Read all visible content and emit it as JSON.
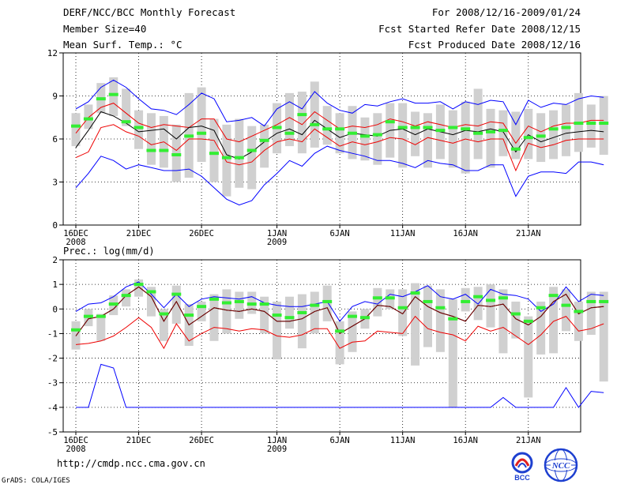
{
  "header": {
    "left": [
      "DERF/NCC/BCC Monthly Forecast",
      "Member Size=40",
      "Mean Surf. Temp.: °C"
    ],
    "right": [
      "For 2008/12/16-2009/01/24",
      "Fcst Started Refer Date 2008/12/15",
      "Fcst Produced Date 2008/12/16"
    ]
  },
  "footer": {
    "url": "http://cmdp.ncc.cma.gov.cn",
    "credit": "GrADS: COLA/IGES"
  },
  "logos": {
    "bcc": "BCC",
    "ncc": "NCC"
  },
  "colors": {
    "max": "#0000ff",
    "p10": "#ee0000",
    "mean": "#000000",
    "box": "#d0d0d0",
    "median": "#33ee33",
    "grid": "#000000"
  },
  "chart_data": [
    {
      "type": "line",
      "title": "Mean Surf. Temp.: °C",
      "ylim": [
        0,
        12
      ],
      "yticks": [
        "0",
        "3",
        "6",
        "9",
        "12"
      ],
      "xticks": [
        {
          "day": 1,
          "label": "16DEC",
          "sub": "2008"
        },
        {
          "day": 6,
          "label": "21DEC",
          "sub": ""
        },
        {
          "day": 11,
          "label": "26DEC",
          "sub": ""
        },
        {
          "day": 17,
          "label": "1JAN",
          "sub": "2009"
        },
        {
          "day": 22,
          "label": "6JAN",
          "sub": ""
        },
        {
          "day": 27,
          "label": "11JAN",
          "sub": ""
        },
        {
          "day": 32,
          "label": "16JAN",
          "sub": ""
        },
        {
          "day": 37,
          "label": "21JAN",
          "sub": ""
        }
      ],
      "series": [
        {
          "name": "max",
          "values": [
            2.6,
            3.6,
            4.8,
            4.5,
            3.9,
            4.2,
            4.0,
            3.8,
            3.8,
            3.9,
            3.4,
            2.6,
            1.8,
            1.4,
            1.7,
            2.8,
            3.6,
            4.5,
            4.1,
            5.0,
            5.5,
            5.2,
            5.0,
            4.8,
            4.5,
            4.5,
            4.3,
            4.0,
            4.5,
            4.3,
            4.2,
            3.8,
            3.8,
            4.2,
            4.2,
            2.0,
            3.4,
            3.7,
            3.7,
            3.6,
            4.4,
            4.4,
            4.2
          ]
        },
        {
          "name": "max_top",
          "values": [
            8.1,
            8.6,
            9.6,
            10.1,
            9.6,
            8.8,
            8.1,
            8.0,
            7.7,
            8.4,
            9.2,
            8.8,
            7.2,
            7.3,
            7.5,
            6.9,
            8.1,
            8.6,
            8.1,
            9.3,
            8.5,
            8.0,
            7.8,
            8.4,
            8.3,
            8.6,
            8.8,
            8.5,
            8.5,
            8.6,
            8.1,
            8.6,
            8.4,
            8.7,
            8.6,
            7.0,
            8.7,
            8.2,
            8.5,
            8.4,
            8.8,
            9.0,
            8.9
          ]
        },
        {
          "name": "p90",
          "values": [
            6.4,
            7.5,
            8.2,
            8.5,
            7.8,
            7.1,
            6.8,
            7.0,
            6.9,
            6.8,
            7.4,
            7.4,
            6.0,
            5.8,
            6.2,
            6.6,
            7.0,
            7.5,
            7.0,
            7.9,
            7.3,
            6.7,
            6.9,
            6.8,
            7.0,
            7.4,
            7.2,
            6.9,
            7.2,
            7.0,
            6.8,
            7.0,
            6.9,
            7.2,
            7.1,
            5.7,
            6.9,
            6.5,
            6.9,
            7.1,
            7.1,
            7.3,
            7.3
          ]
        },
        {
          "name": "mean",
          "values": [
            5.4,
            6.6,
            7.9,
            7.6,
            7.1,
            6.5,
            6.6,
            6.7,
            6.0,
            6.8,
            6.9,
            6.6,
            4.9,
            4.6,
            5.1,
            5.8,
            6.4,
            6.7,
            6.3,
            7.3,
            6.7,
            6.1,
            6.4,
            6.3,
            6.2,
            6.6,
            6.7,
            6.3,
            6.7,
            6.5,
            6.3,
            6.6,
            6.5,
            6.7,
            6.5,
            5.1,
            6.3,
            5.8,
            6.1,
            6.4,
            6.5,
            6.6,
            6.5
          ]
        },
        {
          "name": "p10",
          "values": [
            4.7,
            5.1,
            6.8,
            7.0,
            6.5,
            6.2,
            5.6,
            5.8,
            5.2,
            6.0,
            6.0,
            5.9,
            4.4,
            4.2,
            4.4,
            5.2,
            5.8,
            6.0,
            5.8,
            6.7,
            6.1,
            5.5,
            5.8,
            5.6,
            5.8,
            6.1,
            6.0,
            5.6,
            6.1,
            5.9,
            5.7,
            6.0,
            5.8,
            6.0,
            6.0,
            3.8,
            5.7,
            5.4,
            5.6,
            5.9,
            6.0,
            6.0,
            6.0
          ]
        },
        {
          "name": "median",
          "values": [
            6.9,
            7.4,
            8.8,
            9.1,
            7.2,
            6.8,
            5.2,
            5.2,
            4.9,
            6.2,
            6.4,
            5.0,
            4.7,
            4.7,
            5.2,
            5.9,
            6.8,
            6.4,
            7.7,
            7.0,
            6.7,
            6.7,
            6.4,
            6.2,
            6.3,
            7.2,
            6.8,
            6.8,
            6.8,
            6.6,
            6.8,
            6.7,
            6.4,
            6.5,
            6.6,
            5.3,
            6.1,
            6.2,
            6.7,
            6.8,
            7.1,
            7.1,
            7.1
          ]
        },
        {
          "name": "box_low",
          "values": [
            5.5,
            6.7,
            7.8,
            7.6,
            6.9,
            5.3,
            4.2,
            4.0,
            3.0,
            3.3,
            4.4,
            3.0,
            2.0,
            2.6,
            2.5,
            4.0,
            5.0,
            5.5,
            5.0,
            5.4,
            5.6,
            5.0,
            4.6,
            4.5,
            4.2,
            4.7,
            4.0,
            4.8,
            4.0,
            4.6,
            4.0,
            3.6,
            4.6,
            4.0,
            4.8,
            4.6,
            4.6,
            4.4,
            4.6,
            4.8,
            5.1,
            5.4,
            4.9
          ]
        },
        {
          "name": "box_high",
          "values": [
            7.8,
            8.4,
            9.9,
            10.3,
            9.5,
            8.0,
            7.8,
            7.6,
            7.0,
            9.2,
            9.6,
            7.4,
            7.0,
            7.4,
            6.9,
            7.0,
            8.5,
            9.2,
            9.3,
            10.0,
            8.3,
            7.8,
            8.3,
            7.5,
            7.8,
            8.5,
            8.5,
            7.9,
            7.8,
            8.4,
            8.0,
            8.6,
            9.5,
            8.1,
            8.0,
            7.9,
            8.1,
            7.8,
            8.0,
            8.4,
            9.2,
            8.4,
            9.0
          ]
        }
      ]
    },
    {
      "type": "line",
      "title": "Prec.: log(mm/d)",
      "ylim": [
        -5,
        2
      ],
      "yticks": [
        "-5",
        "-4",
        "-3",
        "-2",
        "-1",
        "0",
        "1",
        "2"
      ],
      "series": [
        {
          "name": "max",
          "values": [
            -4.0,
            -4.0,
            -2.25,
            -2.4,
            -4.0,
            -4.0,
            -4.0,
            -4.0,
            -4.0,
            -4.0,
            -4.0,
            -4.0,
            -4.0,
            -4.0,
            -4.0,
            -4.0,
            -4.0,
            -4.0,
            -4.0,
            -4.0,
            -4.0,
            -4.0,
            -4.0,
            -4.0,
            -4.0,
            -4.0,
            -4.0,
            -4.0,
            -4.0,
            -4.0,
            -4.0,
            -4.0,
            -4.0,
            -4.0,
            -3.6,
            -4.0,
            -4.0,
            -4.0,
            -4.0,
            -3.2,
            -4.0,
            -3.35,
            -3.4
          ]
        },
        {
          "name": "max_top",
          "values": [
            -0.1,
            0.2,
            0.25,
            0.5,
            0.9,
            1.1,
            0.6,
            0.05,
            0.6,
            0.1,
            0.4,
            0.5,
            0.45,
            0.4,
            0.5,
            0.25,
            0.15,
            0.1,
            0.1,
            0.2,
            0.3,
            -0.5,
            0.1,
            0.3,
            0.2,
            0.6,
            0.5,
            0.7,
            0.95,
            0.5,
            0.4,
            0.6,
            0.2,
            0.8,
            0.6,
            0.55,
            0.4,
            -0.1,
            0.2,
            0.9,
            0.3,
            0.6,
            0.55
          ]
        },
        {
          "name": "mean",
          "values": [
            -1.1,
            -0.4,
            -0.3,
            0.0,
            0.55,
            0.9,
            0.5,
            -0.5,
            0.3,
            -0.65,
            -0.3,
            0.05,
            -0.05,
            -0.1,
            0.0,
            -0.1,
            -0.5,
            -0.5,
            -0.4,
            -0.1,
            0.05,
            -1.0,
            -0.7,
            -0.4,
            0.15,
            0.1,
            -0.2,
            0.5,
            0.1,
            -0.15,
            -0.3,
            -0.5,
            0.15,
            0.1,
            0.2,
            -0.4,
            -0.65,
            -0.3,
            0.3,
            0.6,
            -0.2,
            0.05,
            0.1
          ]
        },
        {
          "name": "p10",
          "values": [
            -1.45,
            -1.4,
            -1.3,
            -1.1,
            -0.75,
            -0.35,
            -0.75,
            -1.6,
            -0.6,
            -1.3,
            -1.0,
            -0.75,
            -0.8,
            -0.9,
            -0.8,
            -0.85,
            -1.1,
            -1.15,
            -1.05,
            -0.8,
            -0.8,
            -1.6,
            -1.35,
            -1.3,
            -0.9,
            -0.95,
            -1.0,
            -0.3,
            -0.8,
            -0.95,
            -1.05,
            -1.3,
            -0.7,
            -0.9,
            -0.75,
            -1.1,
            -1.45,
            -1.05,
            -0.5,
            -0.3,
            -0.9,
            -0.8,
            -0.6
          ]
        },
        {
          "name": "median",
          "values": [
            -0.85,
            -0.3,
            -0.3,
            0.2,
            0.55,
            1.0,
            0.7,
            -0.2,
            0.6,
            -0.25,
            0.1,
            0.4,
            0.25,
            0.3,
            0.2,
            0.2,
            -0.25,
            -0.35,
            -0.15,
            0.15,
            0.3,
            -0.9,
            -0.3,
            -0.35,
            0.45,
            0.45,
            0.05,
            0.65,
            0.3,
            0.05,
            -0.4,
            0.3,
            0.5,
            0.35,
            0.45,
            -0.2,
            -0.5,
            0.05,
            0.55,
            0.15,
            -0.1,
            0.3,
            0.3
          ]
        },
        {
          "name": "box_low",
          "values": [
            -1.65,
            -0.7,
            -1.3,
            -0.25,
            0.1,
            0.5,
            -0.3,
            -1.3,
            -0.6,
            -1.5,
            -0.5,
            -1.3,
            -1.0,
            -0.4,
            -0.2,
            -1.0,
            -2.05,
            -0.8,
            -1.6,
            -1.0,
            -0.5,
            -2.25,
            -1.75,
            -0.8,
            -0.3,
            0.0,
            -1.1,
            -2.3,
            -1.55,
            -1.75,
            -4.0,
            -0.1,
            -0.45,
            -0.75,
            -1.8,
            -1.2,
            -3.6,
            -1.85,
            -1.8,
            -0.9,
            -1.3,
            -1.05,
            -2.95
          ]
        },
        {
          "name": "box_high",
          "values": [
            -0.5,
            0.0,
            -0.2,
            0.55,
            0.8,
            1.2,
            0.9,
            0.0,
            0.95,
            0.2,
            0.3,
            0.6,
            0.8,
            0.7,
            0.7,
            0.5,
            0.3,
            0.5,
            0.6,
            0.7,
            0.95,
            -0.5,
            -0.1,
            0.0,
            0.85,
            0.8,
            0.8,
            1.05,
            0.95,
            0.8,
            0.4,
            0.85,
            0.9,
            1.0,
            0.8,
            0.3,
            -0.3,
            0.3,
            0.9,
            0.8,
            0.3,
            0.7,
            0.7
          ]
        }
      ]
    }
  ]
}
